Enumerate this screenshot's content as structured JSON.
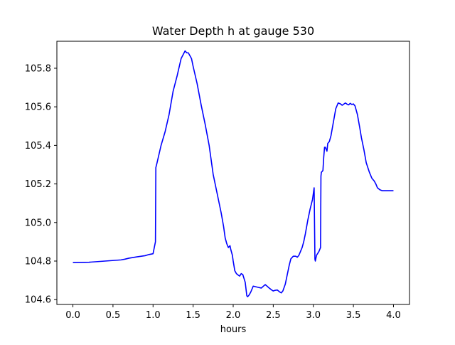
{
  "chart_data": {
    "type": "line",
    "title": "Water Depth h at gauge 530",
    "xlabel": "hours",
    "ylabel": "",
    "xlim": [
      -0.2,
      4.2
    ],
    "ylim": [
      104.575,
      105.94
    ],
    "xticks": [
      0.0,
      0.5,
      1.0,
      1.5,
      2.0,
      2.5,
      3.0,
      3.5,
      4.0
    ],
    "xtick_labels": [
      "0.0",
      "0.5",
      "1.0",
      "1.5",
      "2.0",
      "2.5",
      "3.0",
      "3.5",
      "4.0"
    ],
    "yticks": [
      104.6,
      104.8,
      105.0,
      105.2,
      105.4,
      105.6,
      105.8
    ],
    "ytick_labels": [
      "104.6",
      "104.8",
      "105.0",
      "105.2",
      "105.4",
      "105.6",
      "105.8"
    ],
    "grid": false,
    "series": [
      {
        "color": "#0000ff",
        "x": [
          0.0,
          0.2,
          0.4,
          0.6,
          0.65,
          0.7,
          0.8,
          0.9,
          0.95,
          1.0,
          1.03,
          1.035,
          1.05,
          1.1,
          1.15,
          1.2,
          1.25,
          1.3,
          1.35,
          1.4,
          1.42,
          1.44,
          1.48,
          1.5,
          1.55,
          1.6,
          1.65,
          1.7,
          1.75,
          1.8,
          1.85,
          1.88,
          1.9,
          1.92,
          1.94,
          1.96,
          1.97,
          1.99,
          2.0,
          2.02,
          2.04,
          2.06,
          2.08,
          2.1,
          2.12,
          2.15,
          2.17,
          2.18,
          2.2,
          2.22,
          2.25,
          2.3,
          2.35,
          2.4,
          2.45,
          2.48,
          2.5,
          2.52,
          2.55,
          2.58,
          2.6,
          2.62,
          2.65,
          2.68,
          2.7,
          2.72,
          2.75,
          2.78,
          2.8,
          2.82,
          2.84,
          2.86,
          2.88,
          2.9,
          2.93,
          2.96,
          2.99,
          3.01,
          3.02,
          3.025,
          3.04,
          3.07,
          3.09,
          3.095,
          3.1,
          3.12,
          3.13,
          3.14,
          3.15,
          3.17,
          3.18,
          3.2,
          3.22,
          3.25,
          3.28,
          3.31,
          3.34,
          3.36,
          3.38,
          3.4,
          3.42,
          3.44,
          3.46,
          3.48,
          3.5,
          3.52,
          3.55,
          3.58,
          3.6,
          3.63,
          3.66,
          3.7,
          3.73,
          3.76,
          3.78,
          3.8,
          3.83,
          3.86,
          3.9,
          3.95,
          4.0
        ],
        "y": [
          104.792,
          104.794,
          104.8,
          104.806,
          104.81,
          104.815,
          104.822,
          104.828,
          104.834,
          104.838,
          104.9,
          105.285,
          105.31,
          105.4,
          105.47,
          105.56,
          105.68,
          105.76,
          105.85,
          105.89,
          105.88,
          105.88,
          105.85,
          105.81,
          105.72,
          105.61,
          105.51,
          105.4,
          105.25,
          105.15,
          105.05,
          104.98,
          104.92,
          104.89,
          104.87,
          104.88,
          104.86,
          104.83,
          104.8,
          104.75,
          104.735,
          104.728,
          104.722,
          104.735,
          104.73,
          104.69,
          104.62,
          104.615,
          104.625,
          104.64,
          104.67,
          104.665,
          104.66,
          104.678,
          104.66,
          104.65,
          104.645,
          104.648,
          104.65,
          104.64,
          104.635,
          104.645,
          104.68,
          104.74,
          104.78,
          104.812,
          104.825,
          104.825,
          104.82,
          104.83,
          104.85,
          104.87,
          104.9,
          104.94,
          105.01,
          105.07,
          105.12,
          105.18,
          104.81,
          104.8,
          104.83,
          104.85,
          104.87,
          105.24,
          105.26,
          105.27,
          105.34,
          105.39,
          105.39,
          105.37,
          105.41,
          105.42,
          105.45,
          105.52,
          105.59,
          105.62,
          105.615,
          105.608,
          105.614,
          105.62,
          105.614,
          105.61,
          105.618,
          105.612,
          105.615,
          105.605,
          105.56,
          105.49,
          105.44,
          105.38,
          105.31,
          105.26,
          105.23,
          105.215,
          105.2,
          105.18,
          105.17,
          105.165,
          105.165,
          105.165,
          105.165
        ]
      }
    ]
  }
}
